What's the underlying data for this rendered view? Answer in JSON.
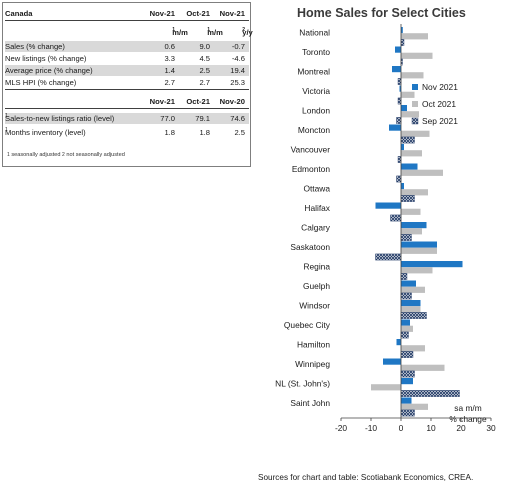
{
  "table": {
    "region": "Canada",
    "head1": [
      "Nov-21",
      "Oct-21",
      "Nov-21"
    ],
    "sub1": [
      "m/m",
      "m/m",
      "y/y"
    ],
    "sub1_sup": [
      "1",
      "1",
      "2"
    ],
    "rows1": [
      {
        "label": "Sales (% change)",
        "values": [
          "0.6",
          "9.0",
          "-0.7"
        ]
      },
      {
        "label": "New listings (% change)",
        "values": [
          "3.3",
          "4.5",
          "-4.6"
        ]
      },
      {
        "label": "Average price (% change)",
        "values": [
          "1.4",
          "2.5",
          "19.4"
        ]
      },
      {
        "label": "MLS HPI (% change)",
        "values": [
          "2.7",
          "2.7",
          "25.3"
        ]
      }
    ],
    "head2": [
      "Nov-21",
      "Oct-21",
      "Nov-20"
    ],
    "rows2": [
      {
        "label": "Sales-to-new listings ratio (level)",
        "sup": "1",
        "values": [
          "77.0",
          "79.1",
          "74.6"
        ]
      },
      {
        "label": "Months inventory (level)",
        "sup": "1",
        "values": [
          "1.8",
          "1.8",
          "2.5"
        ]
      }
    ],
    "footnote_sup1": "1",
    "footnote1": " seasonally adjusted ",
    "footnote_sup2": "2",
    "footnote2": " not seasonally adjusted"
  },
  "source_note": "Sources for chart and table: Scotiabank Economics, CREA.",
  "colors": {
    "nov": "#1f77c4",
    "oct": "#bfbfbf",
    "sep_hatch": "#1f3864"
  },
  "chart_data": {
    "type": "bar",
    "orientation": "horizontal",
    "title": "Home Sales for Select Cities",
    "annotation": "sa m/m\n% change",
    "annotation_lines": [
      "sa m/m",
      "% change"
    ],
    "xlim": [
      -20,
      30
    ],
    "xticks": [
      "-20",
      "-10",
      "0",
      "10",
      "20",
      "30"
    ],
    "categories": [
      "National",
      "Toronto",
      "Montreal",
      "Victoria",
      "London",
      "Moncton",
      "Vancouver",
      "Edmonton",
      "Ottawa",
      "Halifax",
      "Calgary",
      "Saskatoon",
      "Regina",
      "Guelph",
      "Windsor",
      "Quebec City",
      "Hamilton",
      "Winnipeg",
      "NL (St. John's)",
      "Saint John"
    ],
    "series": [
      {
        "name": "Nov 2021",
        "values": [
          0.6,
          -2.0,
          -3.0,
          -0.5,
          2.0,
          -4.0,
          1.0,
          5.5,
          1.0,
          -8.5,
          8.5,
          12.0,
          20.5,
          5.0,
          6.5,
          3.0,
          -1.5,
          -6.0,
          4.0,
          3.5
        ]
      },
      {
        "name": "Oct 2021",
        "values": [
          9.0,
          10.5,
          7.5,
          4.5,
          6.0,
          9.5,
          7.0,
          14.0,
          9.0,
          6.5,
          7.0,
          12.0,
          10.5,
          8.0,
          6.5,
          4.0,
          8.0,
          14.5,
          -10.0,
          9.0
        ]
      },
      {
        "name": "Sep 2021",
        "values": [
          1.0,
          0.5,
          -1.0,
          -1.0,
          -1.5,
          4.5,
          -1.0,
          -1.5,
          4.5,
          -3.5,
          3.5,
          -8.5,
          2.0,
          3.5,
          8.5,
          2.5,
          4.0,
          4.5,
          19.5,
          4.5
        ]
      }
    ],
    "legend_position": "right"
  }
}
